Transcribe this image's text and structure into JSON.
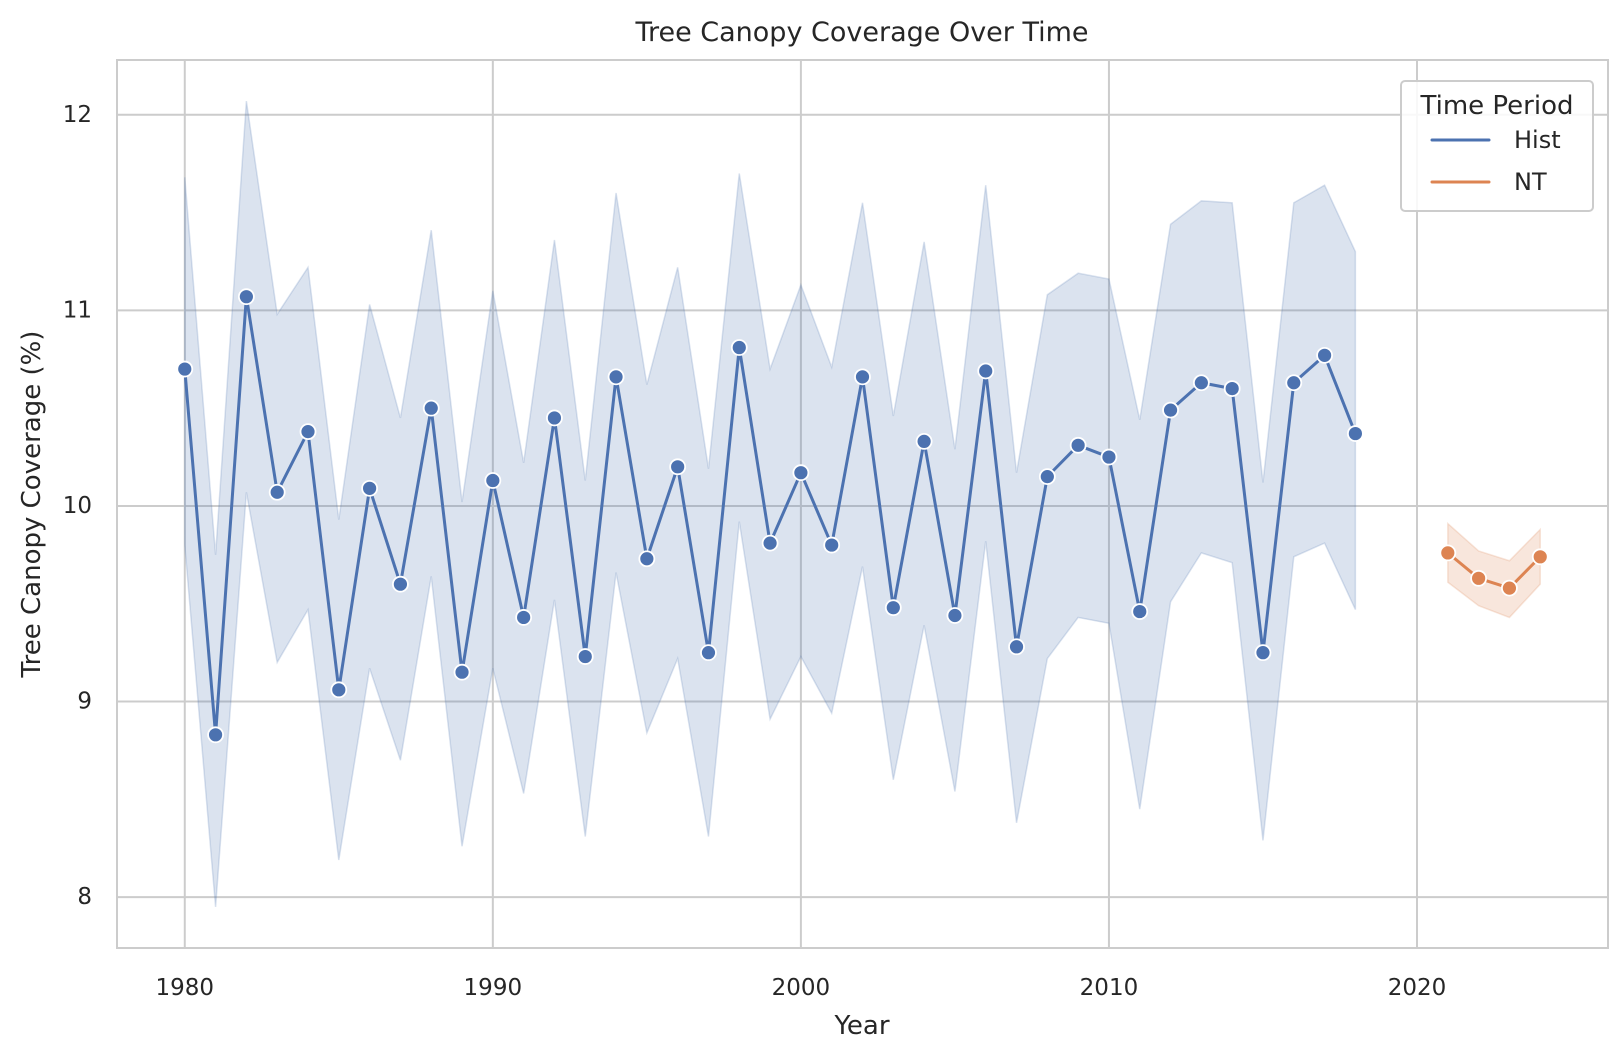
{
  "chart_data": {
    "type": "line",
    "title": "Tree Canopy Coverage Over Time",
    "xlabel": "Year",
    "ylabel": "Tree Canopy Coverage (%)",
    "xlim": [
      1977.8,
      2026.2
    ],
    "ylim": [
      7.74,
      12.28
    ],
    "xticks": [
      1980,
      1990,
      2000,
      2010,
      2020
    ],
    "yticks": [
      8,
      9,
      10,
      11,
      12
    ],
    "grid": true,
    "legend": {
      "title": "Time Period",
      "position": "top-right",
      "entries": [
        "Hist",
        "NT"
      ]
    },
    "series": [
      {
        "name": "Hist",
        "color": "#4c72b0",
        "x": [
          1980,
          1981,
          1982,
          1983,
          1984,
          1985,
          1986,
          1987,
          1988,
          1989,
          1990,
          1991,
          1992,
          1993,
          1994,
          1995,
          1996,
          1997,
          1998,
          1999,
          2000,
          2001,
          2002,
          2003,
          2004,
          2005,
          2006,
          2007,
          2008,
          2009,
          2010,
          2011,
          2012,
          2013,
          2014,
          2015,
          2016,
          2017,
          2018
        ],
        "y": [
          10.7,
          8.83,
          11.07,
          10.07,
          10.38,
          9.06,
          10.09,
          9.6,
          10.5,
          9.15,
          10.13,
          9.43,
          10.45,
          9.23,
          10.66,
          9.73,
          10.2,
          9.25,
          10.81,
          9.81,
          10.17,
          9.8,
          10.66,
          9.48,
          10.33,
          9.44,
          10.69,
          9.28,
          10.15,
          10.31,
          10.25,
          9.46,
          10.49,
          10.63,
          10.6,
          9.25,
          10.63,
          10.77,
          10.37
        ],
        "ci_upper": [
          11.68,
          9.75,
          12.07,
          10.98,
          11.22,
          9.93,
          11.03,
          10.45,
          11.41,
          10.02,
          11.1,
          10.22,
          11.36,
          10.13,
          11.6,
          10.62,
          11.22,
          10.19,
          11.7,
          10.7,
          11.13,
          10.71,
          11.55,
          10.46,
          11.35,
          10.29,
          11.64,
          10.17,
          11.08,
          11.19,
          11.16,
          10.44,
          11.44,
          11.56,
          11.55,
          10.12,
          11.55,
          11.64,
          11.3
        ],
        "ci_lower": [
          9.8,
          7.95,
          10.07,
          9.2,
          9.47,
          8.19,
          9.17,
          8.7,
          9.64,
          8.26,
          9.17,
          8.53,
          9.52,
          8.31,
          9.66,
          8.84,
          9.22,
          8.31,
          9.92,
          8.91,
          9.23,
          8.94,
          9.69,
          8.6,
          9.39,
          8.54,
          9.82,
          8.38,
          9.22,
          9.43,
          9.4,
          8.45,
          9.51,
          9.76,
          9.71,
          8.29,
          9.74,
          9.81,
          9.47
        ]
      },
      {
        "name": "NT",
        "color": "#dd8452",
        "x": [
          2021,
          2022,
          2023,
          2024
        ],
        "y": [
          9.76,
          9.63,
          9.58,
          9.74
        ],
        "ci_upper": [
          9.91,
          9.77,
          9.72,
          9.88
        ],
        "ci_lower": [
          9.61,
          9.49,
          9.43,
          9.6
        ]
      }
    ]
  }
}
